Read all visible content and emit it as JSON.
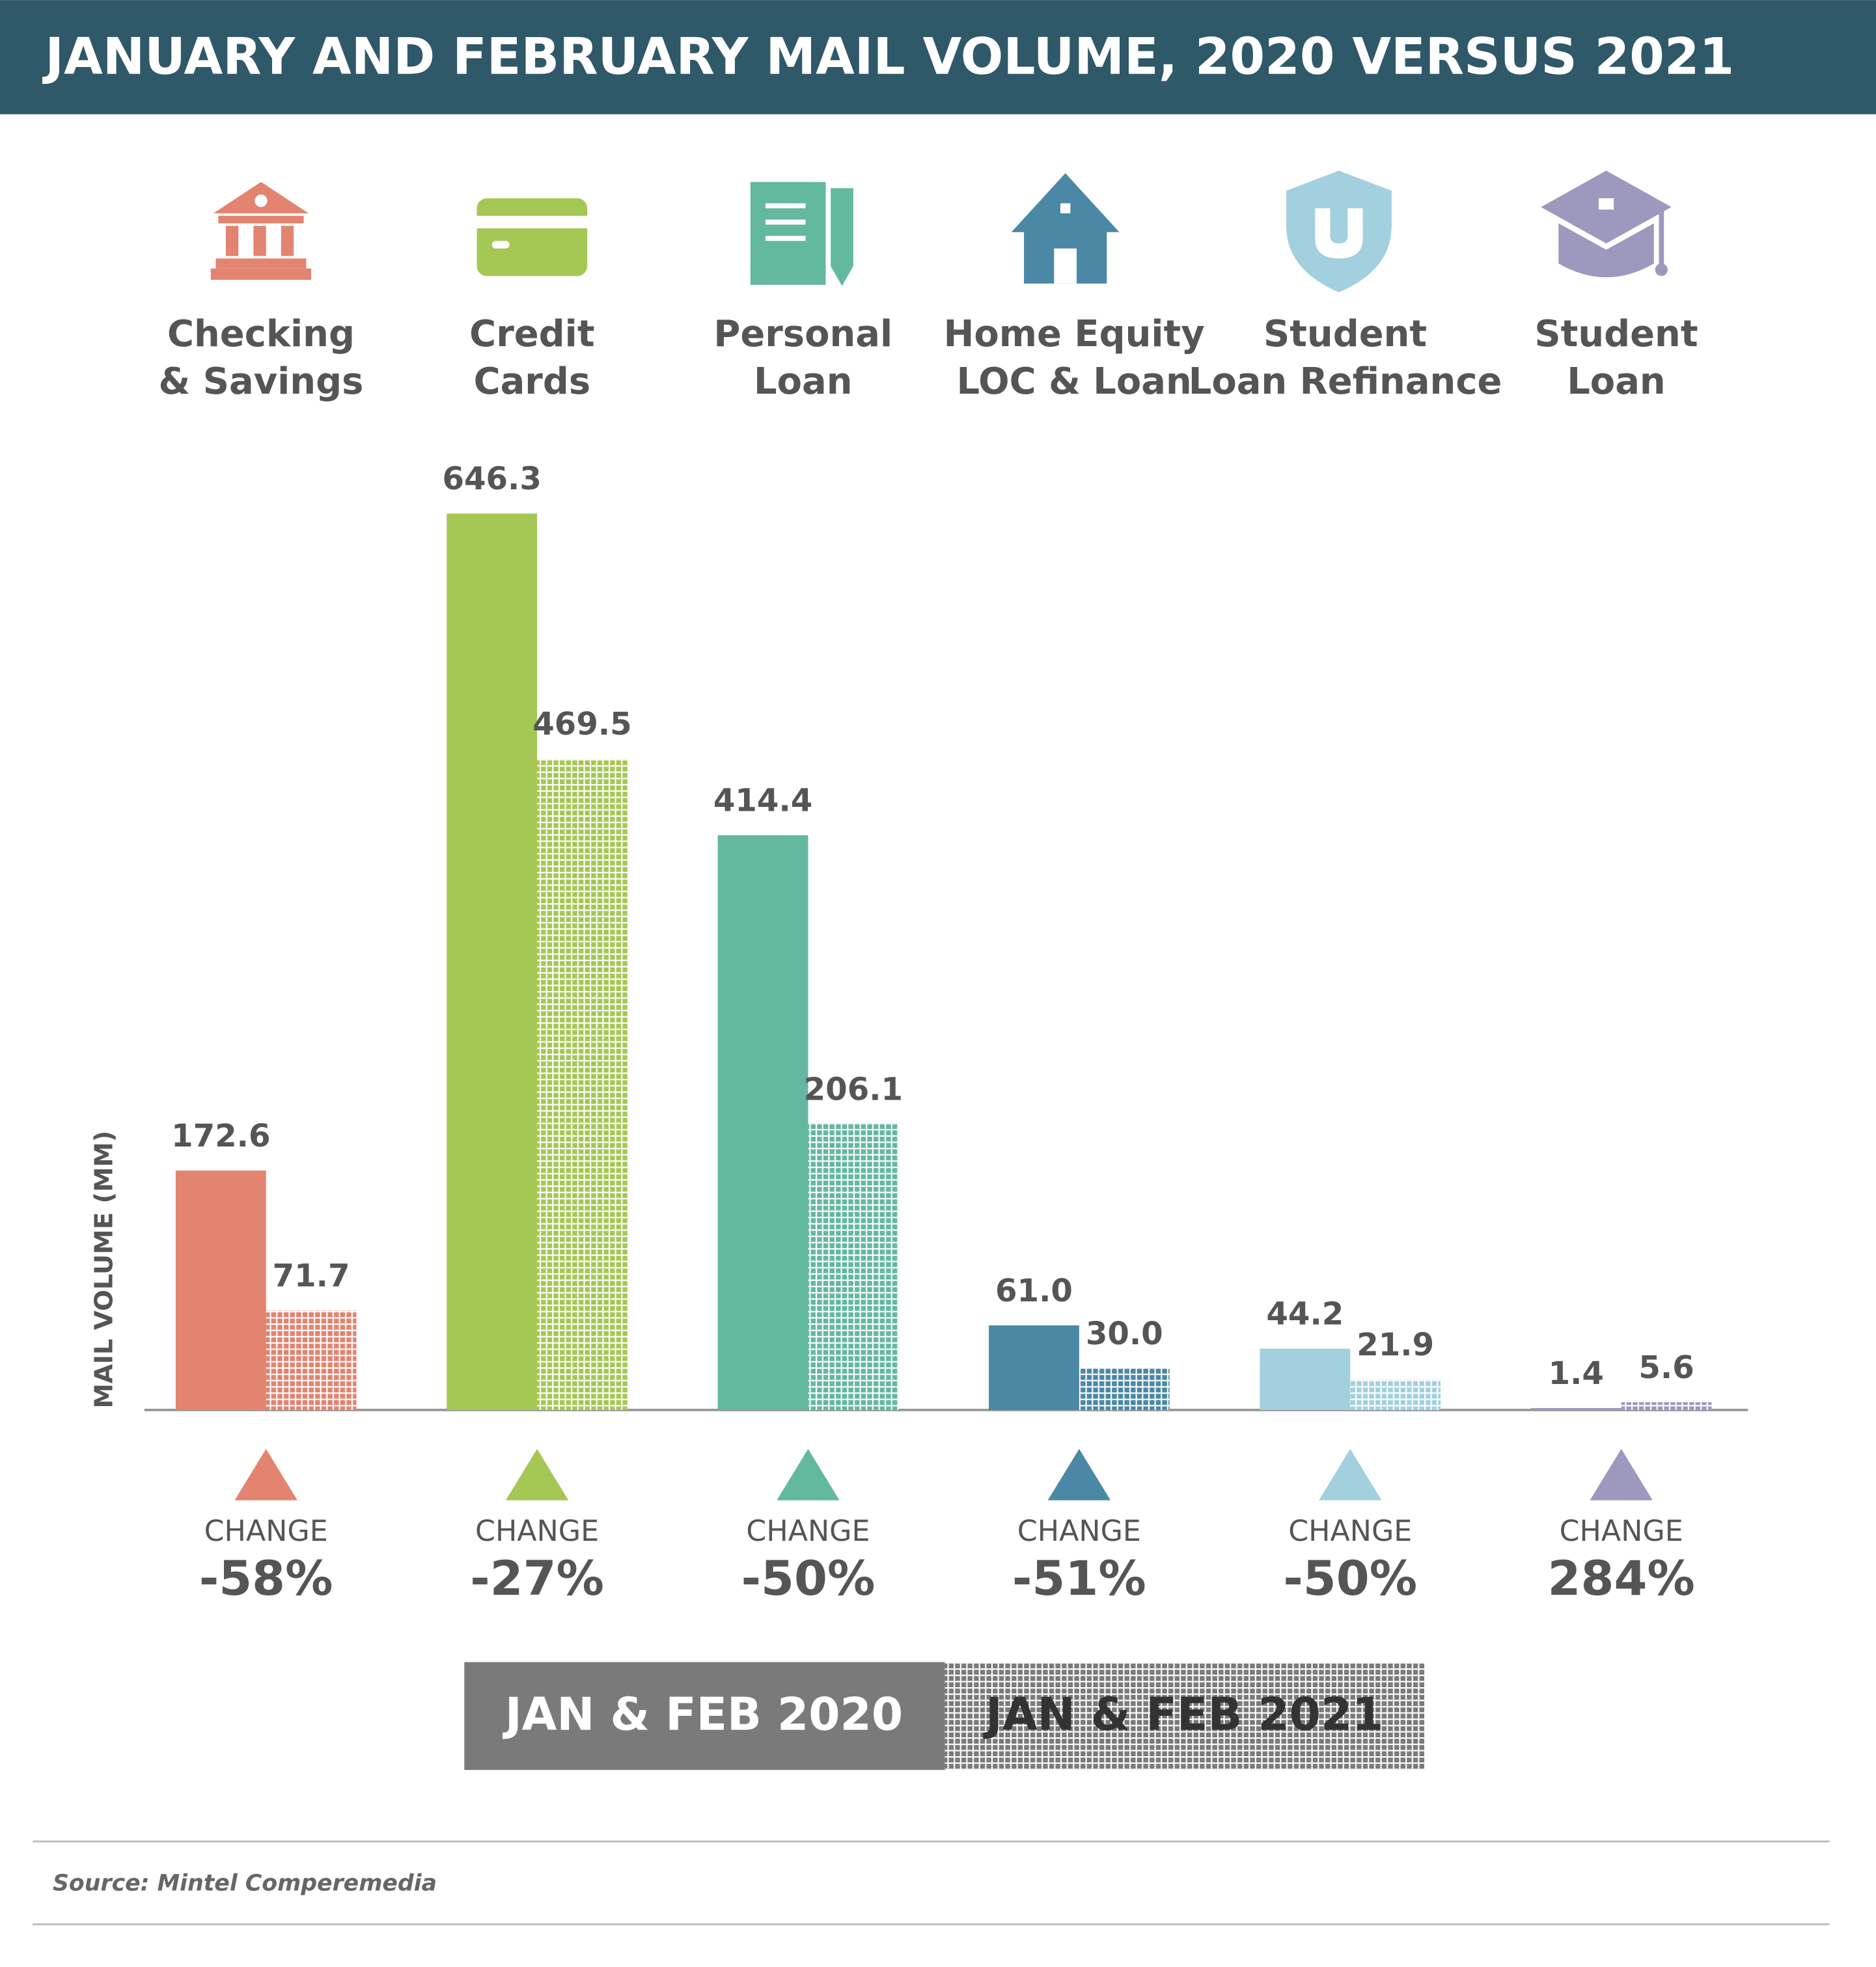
{
  "chart_data": {
    "type": "bar",
    "title": "JANUARY AND FEBRUARY MAIL VOLUME, 2020 VERSUS 2021",
    "y_label": "MAIL VOLUME (MM)",
    "categories": [
      "Checking & Savings",
      "Credit Cards",
      "Personal Loan",
      "Home Equity LOC & Loan",
      "Student Loan Refinance",
      "Student Loan"
    ],
    "category_colors": [
      "#e2846f",
      "#a5c754",
      "#63b8a0",
      "#4a88a5",
      "#a3d0df",
      "#9d98bd"
    ],
    "series": [
      {
        "name": "JAN & FEB 2020",
        "color": "#7a7a7a",
        "values": [
          172.6,
          646.3,
          414.4,
          61.0,
          44.2,
          1.4
        ],
        "value_labels": [
          "172.6",
          "646.3",
          "414.4",
          "61.0",
          "44.2",
          "1.4"
        ]
      },
      {
        "name": "JAN & FEB 2021",
        "color": "#7a7a7a",
        "hatched": true,
        "values": [
          71.7,
          469.5,
          206.1,
          30.0,
          21.9,
          5.6
        ],
        "value_labels": [
          "71.7",
          "469.5",
          "206.1",
          "30.0",
          "21.9",
          "5.6"
        ]
      }
    ],
    "change_label": "CHANGE",
    "changes": {
      "values": [
        -58,
        -27,
        -50,
        -51,
        -50,
        284
      ],
      "value_labels": [
        "-58%",
        "-27%",
        "-50%",
        "-51%",
        "-50%",
        "284%"
      ]
    },
    "ylim": [
      0,
      700
    ],
    "source": "Source: Mintel Comperemedia"
  }
}
